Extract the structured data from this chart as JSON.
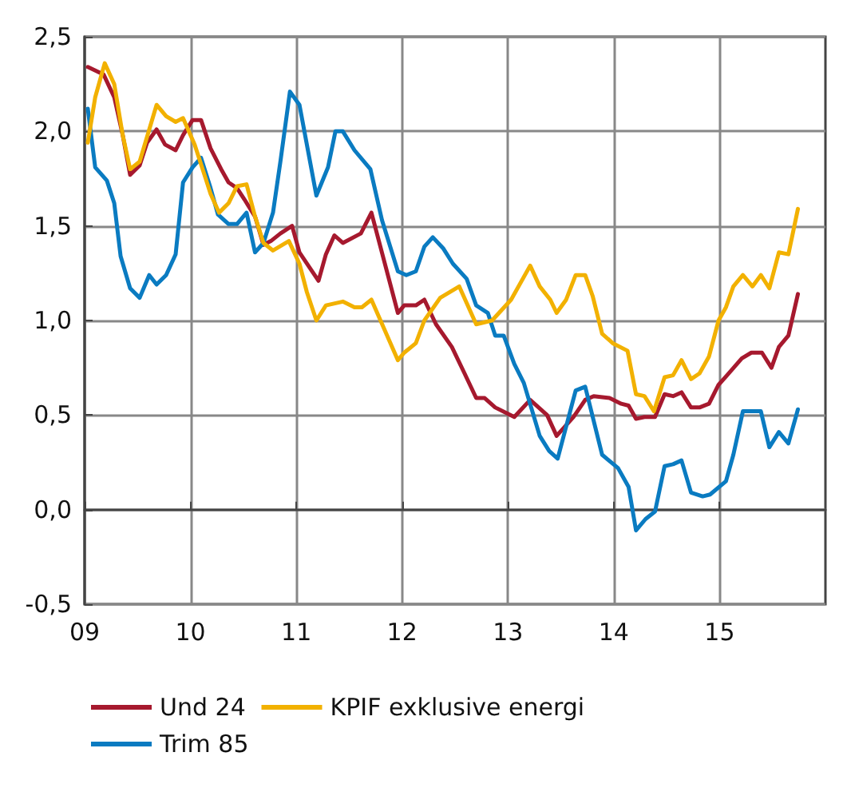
{
  "chart_data": {
    "type": "line",
    "xlim": [
      9,
      16
    ],
    "xticks": [
      {
        "value": 9,
        "label": "09"
      },
      10,
      11,
      12,
      13,
      14,
      15
    ],
    "ylim": [
      -0.5,
      2.5
    ],
    "yticks": [
      {
        "value": -0.5,
        "label": "-0,5"
      },
      {
        "value": 0,
        "label": "0,0"
      },
      {
        "value": 0.5,
        "label": "0,5"
      },
      {
        "value": 1,
        "label": "1,0"
      },
      {
        "value": 1.5,
        "label": "1,5"
      },
      {
        "value": 2,
        "label": "2,0"
      },
      {
        "value": 2.5,
        "label": "2,5"
      }
    ],
    "grid": true,
    "legend": "bottom",
    "line_style": "solid",
    "marker": "none",
    "series": [
      {
        "name": "Und 24",
        "color": "#a6192e",
        "x": [
          9.03,
          9.18,
          9.28,
          9.36,
          9.43,
          9.52,
          9.59,
          9.68,
          9.76,
          9.86,
          9.93,
          10.02,
          10.1,
          10.19,
          10.29,
          10.36,
          10.44,
          10.51,
          10.61,
          10.69,
          10.76,
          10.85,
          10.96,
          11.03,
          11.21,
          11.28,
          11.36,
          11.44,
          11.61,
          11.71,
          11.96,
          12.02,
          12.13,
          12.21,
          12.32,
          12.47,
          12.59,
          12.7,
          12.78,
          12.88,
          13.06,
          13.21,
          13.37,
          13.46,
          13.62,
          13.73,
          13.81,
          13.96,
          14.07,
          14.14,
          14.21,
          14.29,
          14.39,
          14.48,
          14.56,
          14.64,
          14.73,
          14.81,
          14.9,
          14.99,
          15.07,
          15.21,
          15.3,
          15.4,
          15.49,
          15.56,
          15.65,
          15.74
        ],
        "values": [
          2.34,
          2.3,
          2.18,
          1.98,
          1.77,
          1.82,
          1.94,
          2.01,
          1.93,
          1.9,
          1.98,
          2.06,
          2.06,
          1.91,
          1.8,
          1.73,
          1.7,
          1.64,
          1.55,
          1.4,
          1.42,
          1.46,
          1.5,
          1.36,
          1.21,
          1.35,
          1.45,
          1.41,
          1.46,
          1.57,
          1.04,
          1.08,
          1.08,
          1.11,
          0.98,
          0.86,
          0.72,
          0.59,
          0.59,
          0.54,
          0.49,
          0.58,
          0.5,
          0.39,
          0.49,
          0.58,
          0.6,
          0.59,
          0.56,
          0.55,
          0.48,
          0.49,
          0.49,
          0.61,
          0.6,
          0.62,
          0.54,
          0.54,
          0.56,
          0.66,
          0.71,
          0.8,
          0.83,
          0.83,
          0.75,
          0.86,
          0.92,
          1.14
        ]
      },
      {
        "name": "Trim 85",
        "color": "#0a7bc1",
        "x": [
          9.03,
          9.1,
          9.21,
          9.28,
          9.34,
          9.43,
          9.52,
          9.61,
          9.68,
          9.77,
          9.86,
          9.93,
          10.02,
          10.1,
          10.19,
          10.26,
          10.36,
          10.44,
          10.53,
          10.61,
          10.69,
          10.78,
          10.85,
          10.94,
          11.03,
          11.19,
          11.3,
          11.37,
          11.44,
          11.55,
          11.7,
          11.81,
          11.96,
          12.04,
          12.13,
          12.21,
          12.29,
          12.39,
          12.48,
          12.61,
          12.7,
          12.81,
          12.88,
          12.96,
          13.06,
          13.15,
          13.3,
          13.39,
          13.47,
          13.64,
          13.73,
          13.89,
          14.04,
          14.14,
          14.21,
          14.3,
          14.39,
          14.48,
          14.56,
          14.64,
          14.73,
          14.84,
          14.91,
          15.06,
          15.13,
          15.22,
          15.31,
          15.39,
          15.47,
          15.56,
          15.65,
          15.74
        ],
        "values": [
          2.12,
          1.81,
          1.74,
          1.62,
          1.34,
          1.17,
          1.12,
          1.24,
          1.19,
          1.24,
          1.35,
          1.73,
          1.81,
          1.86,
          1.7,
          1.56,
          1.51,
          1.51,
          1.57,
          1.36,
          1.41,
          1.57,
          1.84,
          2.21,
          2.14,
          1.66,
          1.81,
          2.0,
          2.0,
          1.9,
          1.8,
          1.53,
          1.26,
          1.24,
          1.26,
          1.39,
          1.44,
          1.38,
          1.3,
          1.22,
          1.08,
          1.04,
          0.92,
          0.92,
          0.77,
          0.67,
          0.39,
          0.31,
          0.27,
          0.63,
          0.65,
          0.29,
          0.22,
          0.12,
          -0.11,
          -0.05,
          -0.01,
          0.23,
          0.24,
          0.26,
          0.09,
          0.07,
          0.08,
          0.15,
          0.29,
          0.52,
          0.52,
          0.52,
          0.33,
          0.41,
          0.35,
          0.53
        ]
      },
      {
        "name": "KPIF exklusive energi",
        "color": "#f2b100",
        "x": [
          9.03,
          9.1,
          9.19,
          9.28,
          9.36,
          9.43,
          9.52,
          9.68,
          9.77,
          9.86,
          9.93,
          10.04,
          10.19,
          10.27,
          10.36,
          10.44,
          10.53,
          10.61,
          10.69,
          10.78,
          10.93,
          11.03,
          11.1,
          11.19,
          11.28,
          11.44,
          11.55,
          11.62,
          11.71,
          11.96,
          12.02,
          12.13,
          12.21,
          12.36,
          12.54,
          12.7,
          12.85,
          13.03,
          13.21,
          13.3,
          13.4,
          13.46,
          13.55,
          13.64,
          13.73,
          13.8,
          13.89,
          13.99,
          14.13,
          14.21,
          14.29,
          14.38,
          14.48,
          14.56,
          14.64,
          14.73,
          14.81,
          14.9,
          14.99,
          15.06,
          15.13,
          15.22,
          15.31,
          15.39,
          15.47,
          15.56,
          15.65,
          15.74
        ],
        "values": [
          1.94,
          2.18,
          2.36,
          2.25,
          1.98,
          1.8,
          1.84,
          2.14,
          2.08,
          2.05,
          2.07,
          1.93,
          1.67,
          1.57,
          1.62,
          1.71,
          1.72,
          1.55,
          1.41,
          1.37,
          1.42,
          1.3,
          1.15,
          1.0,
          1.08,
          1.1,
          1.07,
          1.07,
          1.11,
          0.79,
          0.83,
          0.88,
          1.0,
          1.12,
          1.18,
          0.98,
          1.0,
          1.11,
          1.29,
          1.18,
          1.11,
          1.04,
          1.11,
          1.24,
          1.24,
          1.13,
          0.93,
          0.88,
          0.84,
          0.61,
          0.6,
          0.52,
          0.7,
          0.71,
          0.79,
          0.69,
          0.72,
          0.81,
          1.0,
          1.07,
          1.18,
          1.24,
          1.18,
          1.24,
          1.17,
          1.36,
          1.35,
          1.59
        ]
      }
    ]
  }
}
